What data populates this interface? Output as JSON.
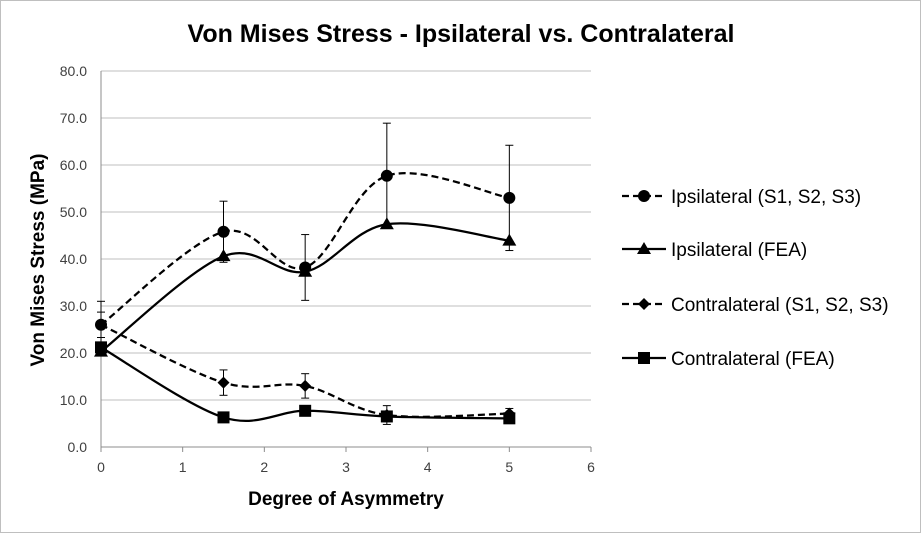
{
  "chart_data": {
    "type": "line",
    "title": "Von Mises Stress - Ipsilateral vs. Contralateral",
    "xlabel": "Degree of Asymmetry",
    "ylabel": "Von Mises Stress (MPa)",
    "xlim": [
      0,
      6
    ],
    "ylim": [
      0,
      80
    ],
    "x_ticks": [
      "0",
      "1",
      "2",
      "3",
      "4",
      "5",
      "6"
    ],
    "y_ticks": [
      "0.0",
      "10.0",
      "20.0",
      "30.0",
      "40.0",
      "50.0",
      "60.0",
      "70.0",
      "80.0"
    ],
    "grid": "horizontal",
    "legend_position": "right",
    "series": [
      {
        "name": "Ipsilateral (S1, S2, S3)",
        "marker": "circle",
        "line": "dashed",
        "x": [
          0,
          1.5,
          2.5,
          3.5,
          5
        ],
        "y": [
          26.0,
          45.8,
          38.2,
          57.7,
          53.0
        ],
        "err": [
          5.0,
          6.5,
          7.0,
          11.2,
          11.2
        ]
      },
      {
        "name": "Ipsilateral (FEA)",
        "marker": "triangle",
        "line": "solid",
        "x": [
          0,
          1.5,
          2.5,
          3.5,
          5
        ],
        "y": [
          20.3,
          40.6,
          37.3,
          47.4,
          43.9
        ],
        "err": []
      },
      {
        "name": "Contralateral (S1, S2, S3)",
        "marker": "diamond",
        "line": "dashed",
        "x": [
          0,
          1.5,
          2.5,
          3.5,
          5
        ],
        "y": [
          26.0,
          13.7,
          13.0,
          6.8,
          7.1
        ],
        "err": [
          2.7,
          2.7,
          2.6,
          2.0,
          1.1
        ]
      },
      {
        "name": "Contralateral (FEA)",
        "marker": "square",
        "line": "solid",
        "x": [
          0,
          1.5,
          2.5,
          3.5,
          5
        ],
        "y": [
          21.2,
          6.3,
          7.7,
          6.5,
          6.1
        ],
        "err": []
      }
    ]
  }
}
